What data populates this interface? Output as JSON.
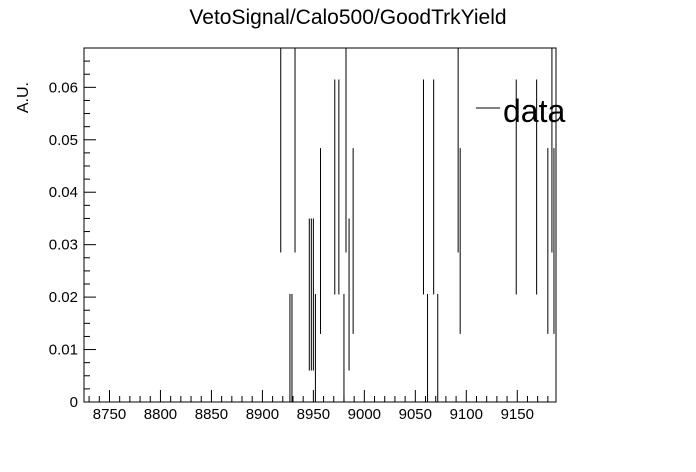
{
  "chart_data": {
    "type": "scatter",
    "title": "VetoSignal/Calo500/GoodTrkYield",
    "xlabel": "",
    "ylabel": "A.U.",
    "xlim": [
      8725,
      9188
    ],
    "ylim": [
      0,
      0.0675
    ],
    "xticks": [
      8750,
      8800,
      8850,
      8900,
      8950,
      9000,
      9050,
      9100,
      9150
    ],
    "yticks": [
      0,
      0.01,
      0.02,
      0.03,
      0.04,
      0.05,
      0.06
    ],
    "ytick_labels": [
      "0",
      "0.01",
      "0.02",
      "0.03",
      "0.04",
      "0.05",
      "0.06"
    ],
    "legend": {
      "position": "top-right",
      "entries": [
        "data"
      ]
    },
    "grid": false,
    "series": [
      {
        "name": "data",
        "color": "#000000",
        "points": [
          {
            "x": 8918,
            "y": 0.051,
            "err": 0.0225
          },
          {
            "x": 8927,
            "y": 0.0103,
            "err": 0.0103
          },
          {
            "x": 8929,
            "y": 0.0103,
            "err": 0.0103
          },
          {
            "x": 8932,
            "y": 0.051,
            "err": 0.0225
          },
          {
            "x": 8946,
            "y": 0.0205,
            "err": 0.0145
          },
          {
            "x": 8948,
            "y": 0.0205,
            "err": 0.0145
          },
          {
            "x": 8950,
            "y": 0.0205,
            "err": 0.0145
          },
          {
            "x": 8952,
            "y": 0.0103,
            "err": 0.0103
          },
          {
            "x": 8957,
            "y": 0.0307,
            "err": 0.0177
          },
          {
            "x": 8971,
            "y": 0.041,
            "err": 0.0205
          },
          {
            "x": 8975,
            "y": 0.041,
            "err": 0.0205
          },
          {
            "x": 8980,
            "y": 0.0103,
            "err": 0.0103
          },
          {
            "x": 8982,
            "y": 0.051,
            "err": 0.0225
          },
          {
            "x": 8985,
            "y": 0.0205,
            "err": 0.0145
          },
          {
            "x": 8989,
            "y": 0.0307,
            "err": 0.0177
          },
          {
            "x": 9058,
            "y": 0.041,
            "err": 0.0205
          },
          {
            "x": 9062,
            "y": 0.0103,
            "err": 0.0103
          },
          {
            "x": 9068,
            "y": 0.041,
            "err": 0.0205
          },
          {
            "x": 9072,
            "y": 0.0103,
            "err": 0.0103
          },
          {
            "x": 9092,
            "y": 0.051,
            "err": 0.0225
          },
          {
            "x": 9094,
            "y": 0.0307,
            "err": 0.0177
          },
          {
            "x": 9149,
            "y": 0.041,
            "err": 0.0205
          },
          {
            "x": 9169,
            "y": 0.041,
            "err": 0.0205
          },
          {
            "x": 9180,
            "y": 0.0307,
            "err": 0.0177
          },
          {
            "x": 9184,
            "y": 0.051,
            "err": 0.0225
          },
          {
            "x": 9186,
            "y": 0.0307,
            "err": 0.0177
          }
        ]
      }
    ]
  }
}
